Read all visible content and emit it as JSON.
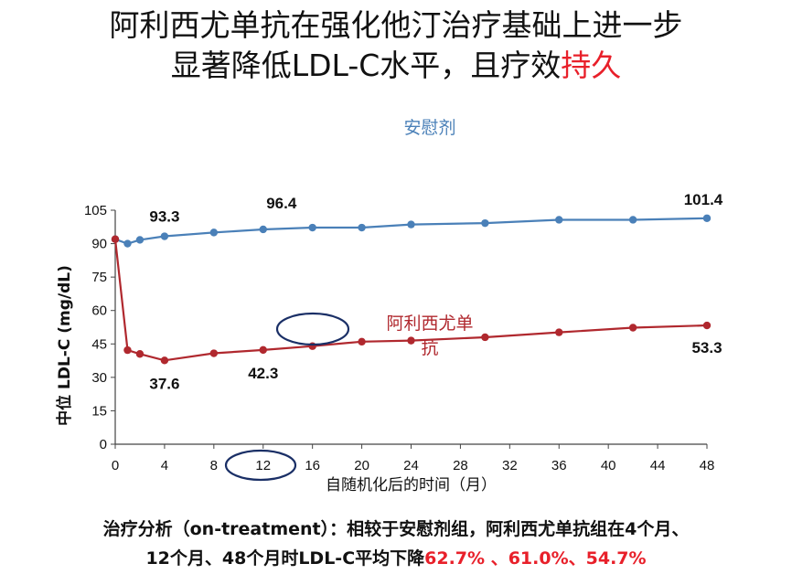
{
  "title": {
    "line1": "阿利西尤单抗在强化他汀治疗基础上进一步",
    "line2_prefix": "显著降低LDL-C水平，且疗效",
    "line2_highlight": "持久"
  },
  "footer": {
    "line1": "治疗分析（on-treatment）：相较于安慰剂组，阿利西尤单抗组在4个月、",
    "line2_prefix": "12个月、48个月时LDL-C平均下降",
    "pct_1": "62.7%",
    "sep_1": " 、",
    "pct_2": "61.0%",
    "sep_2": "、",
    "pct_3": "54.7%"
  },
  "colors": {
    "placebo": "#4a80b8",
    "alirocumab": "#b0282e",
    "highlight_red": "#e8202a",
    "ellipse": "#1a2f66",
    "axis": "#444444"
  },
  "chart_data": {
    "type": "line",
    "xlabel": "自随机化后的时间（月）",
    "ylabel": "中位 LDL-C (mg/dL)",
    "xlim": [
      0,
      48
    ],
    "ylim": [
      0,
      105
    ],
    "xticks": [
      0,
      4,
      8,
      12,
      16,
      20,
      24,
      28,
      32,
      36,
      40,
      44,
      48
    ],
    "yticks": [
      0,
      15,
      30,
      45,
      60,
      75,
      90,
      105
    ],
    "grid": false,
    "series": [
      {
        "name": "安慰剂",
        "color": "#4a80b8",
        "x": [
          0,
          1,
          2,
          4,
          8,
          12,
          16,
          20,
          24,
          30,
          36,
          42,
          48
        ],
        "y": [
          92.0,
          90.0,
          91.7,
          93.3,
          95.0,
          96.4,
          97.2,
          97.2,
          98.6,
          99.2,
          100.7,
          100.7,
          101.4
        ]
      },
      {
        "name": "阿利西尤单抗",
        "color": "#b0282e",
        "x": [
          0,
          1,
          2,
          4,
          8,
          12,
          16,
          20,
          24,
          30,
          36,
          42,
          48
        ],
        "y": [
          92.0,
          42.2,
          40.5,
          37.6,
          40.8,
          42.3,
          44.0,
          46.0,
          46.5,
          48.0,
          50.2,
          52.3,
          53.3
        ]
      }
    ],
    "data_labels": [
      {
        "series": 0,
        "x": 4,
        "text": "93.3"
      },
      {
        "series": 0,
        "x": 12,
        "text": "96.4"
      },
      {
        "series": 0,
        "x": 48,
        "text": "101.4"
      },
      {
        "series": 1,
        "x": 4,
        "text": "37.6"
      },
      {
        "series": 1,
        "x": 12,
        "text": "42.3"
      },
      {
        "series": 1,
        "x": 48,
        "text": "53.3"
      }
    ]
  }
}
